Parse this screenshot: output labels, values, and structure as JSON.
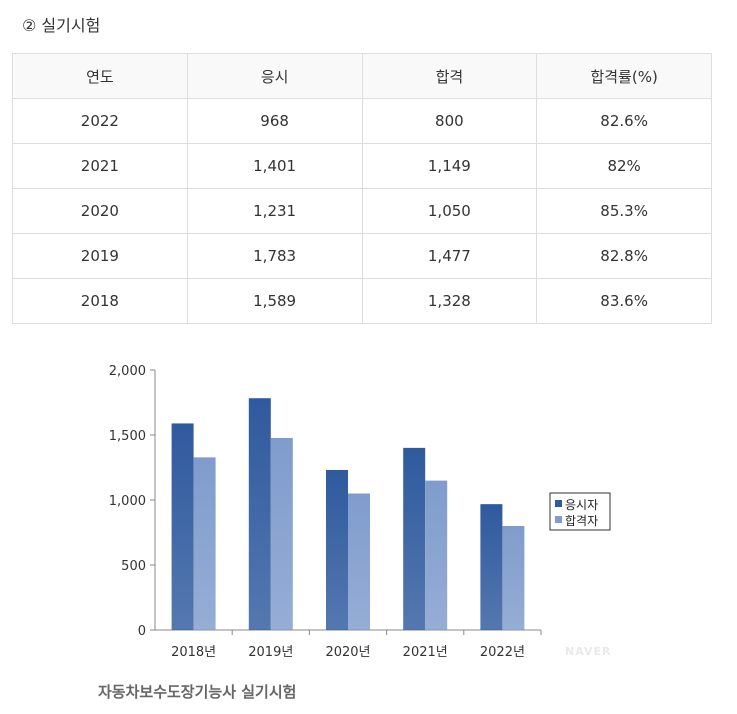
{
  "section_title": "② 실기시험",
  "table": {
    "headers": [
      "연도",
      "응시",
      "합격",
      "합격률(%)"
    ],
    "rows": [
      [
        "2022",
        "968",
        "800",
        "82.6%"
      ],
      [
        "2021",
        "1,401",
        "1,149",
        "82%"
      ],
      [
        "2020",
        "1,231",
        "1,050",
        "85.3%"
      ],
      [
        "2019",
        "1,783",
        "1,477",
        "82.8%"
      ],
      [
        "2018",
        "1,589",
        "1,328",
        "83.6%"
      ]
    ]
  },
  "chart_data": {
    "type": "bar",
    "categories": [
      "2018년",
      "2019년",
      "2020년",
      "2021년",
      "2022년"
    ],
    "series": [
      {
        "name": "응시자",
        "values": [
          1589,
          1783,
          1231,
          1401,
          968
        ],
        "color": "#2f5a9e"
      },
      {
        "name": "합격자",
        "values": [
          1328,
          1477,
          1050,
          1149,
          800
        ],
        "color": "#7f9ccc"
      }
    ],
    "ylim": [
      0,
      2000
    ],
    "yticks": [
      0,
      500,
      1000,
      1500,
      2000
    ],
    "ytick_labels": [
      "0",
      "500",
      "1,000",
      "1,500",
      "2,000"
    ],
    "grid": false,
    "legend": "right"
  },
  "caption": "자동차보수도장기능사 실기시험",
  "watermark": "NAVER"
}
